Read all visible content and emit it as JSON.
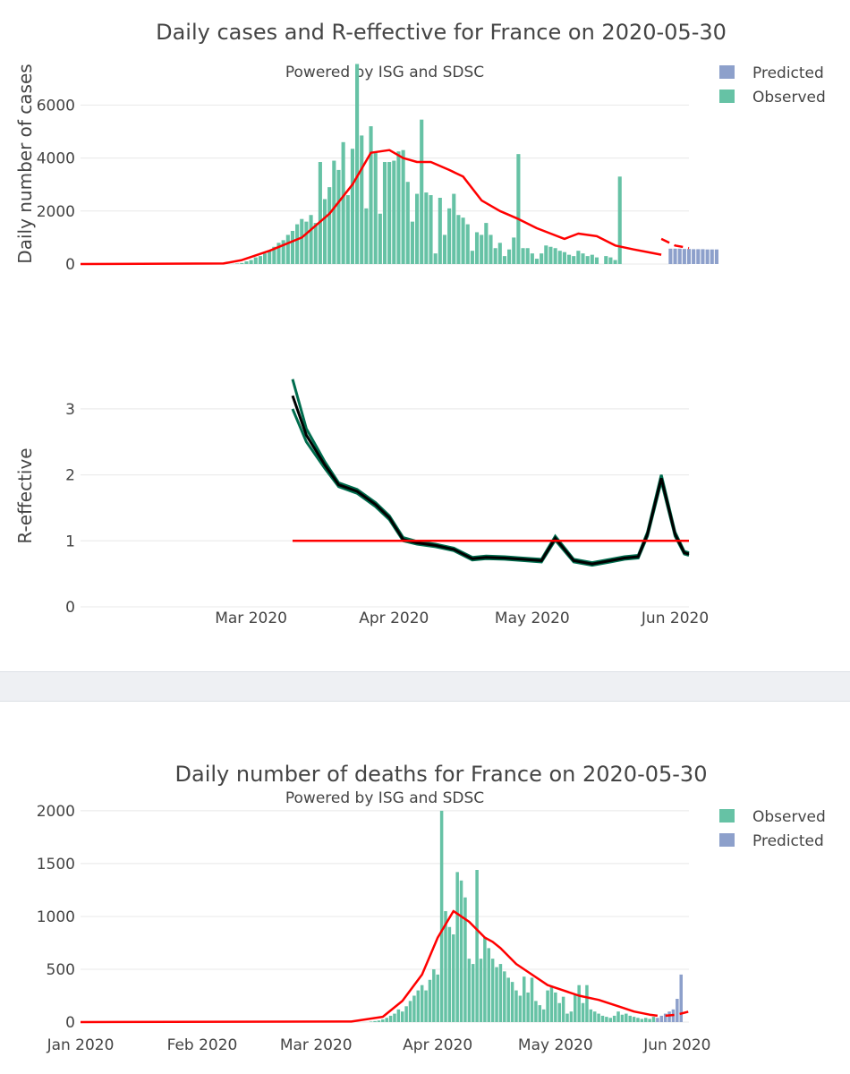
{
  "colors": {
    "observed": "#66c2a5",
    "predicted": "#8da0cb",
    "smooth": "#ff0000",
    "r_band": "#006d4e",
    "r_line": "#000000",
    "threshold": "#ff0000"
  },
  "chart_data": [
    {
      "id": "cases",
      "type": "bar",
      "title": "Daily cases and R-effective for France on 2020-05-30",
      "subtitle": "Powered by ISG and SDSC",
      "ylabel": "Daily number of cases",
      "ylim": [
        0,
        7600
      ],
      "yticks": [
        "0",
        "2000",
        "4000",
        "6000"
      ],
      "ytick_values": [
        0,
        2000,
        4000,
        6000
      ],
      "x_start": "2020-01-24",
      "x_end": "2020-06-04",
      "legend": [
        {
          "key": "predicted",
          "label": "Predicted"
        },
        {
          "key": "observed",
          "label": "Observed"
        }
      ],
      "legend_position": "top-right",
      "observed_start": "2020-02-25",
      "observed": [
        2,
        4,
        20,
        40,
        100,
        150,
        250,
        300,
        400,
        500,
        650,
        800,
        900,
        1100,
        1250,
        1500,
        1700,
        1600,
        1850,
        1550,
        3850,
        2450,
        2900,
        3900,
        3550,
        4600,
        2600,
        4350,
        7550,
        4850,
        2100,
        5200,
        4250,
        1900,
        3850,
        3850,
        3900,
        4250,
        4300,
        3100,
        1600,
        2650,
        5450,
        2700,
        2600,
        400,
        2500,
        1100,
        2100,
        2650,
        1850,
        1750,
        1500,
        500,
        1200,
        1100,
        1550,
        1100,
        600,
        800,
        300,
        550,
        1000,
        4150,
        600,
        600,
        400,
        200,
        400,
        700,
        650,
        600,
        500,
        450,
        350,
        300,
        500,
        400,
        300,
        350,
        250,
        0,
        300,
        250,
        150,
        3300
      ],
      "predicted_start": "2020-05-31",
      "predicted": [
        580,
        580,
        580,
        570,
        570,
        560,
        560,
        560,
        550,
        550,
        550
      ],
      "smooth_x": [
        "2020-01-24",
        "2020-02-24",
        "2020-02-28",
        "2020-03-05",
        "2020-03-12",
        "2020-03-18",
        "2020-03-23",
        "2020-03-27",
        "2020-03-31",
        "2020-04-03",
        "2020-04-06",
        "2020-04-09",
        "2020-04-13",
        "2020-04-16",
        "2020-04-20",
        "2020-04-24",
        "2020-04-28",
        "2020-05-02",
        "2020-05-05",
        "2020-05-08",
        "2020-05-11",
        "2020-05-15",
        "2020-05-19",
        "2020-05-23",
        "2020-05-27",
        "2020-05-29"
      ],
      "smooth_y": [
        0,
        20,
        150,
        500,
        1000,
        1900,
        3000,
        4200,
        4300,
        4000,
        3850,
        3850,
        3550,
        3300,
        2400,
        2000,
        1700,
        1350,
        1150,
        950,
        1150,
        1050,
        700,
        550,
        420,
        350
      ],
      "smooth_forecast_x": [
        "2020-05-29",
        "2020-06-01",
        "2020-06-04"
      ],
      "smooth_forecast_y": [
        950,
        700,
        600
      ]
    },
    {
      "id": "reff",
      "type": "line",
      "ylabel": "R-effective",
      "ylim": [
        0,
        3.5
      ],
      "yticks": [
        "0",
        "1",
        "2",
        "3"
      ],
      "ytick_values": [
        0,
        1,
        2,
        3
      ],
      "x_start": "2020-01-24",
      "x_end": "2020-06-04",
      "xticks": [
        "Mar 2020",
        "Apr 2020",
        "May 2020",
        "Jun 2020"
      ],
      "xtick_dates": [
        "2020-03-01",
        "2020-04-01",
        "2020-05-01",
        "2020-06-01"
      ],
      "x": [
        "2020-03-10",
        "2020-03-13",
        "2020-03-17",
        "2020-03-20",
        "2020-03-24",
        "2020-03-28",
        "2020-03-31",
        "2020-04-03",
        "2020-04-06",
        "2020-04-10",
        "2020-04-14",
        "2020-04-18",
        "2020-04-21",
        "2020-04-25",
        "2020-04-29",
        "2020-05-03",
        "2020-05-06",
        "2020-05-10",
        "2020-05-14",
        "2020-05-18",
        "2020-05-21",
        "2020-05-24",
        "2020-05-26",
        "2020-05-29",
        "2020-06-01",
        "2020-06-03",
        "2020-06-04"
      ],
      "r_mid": [
        3.2,
        2.6,
        2.15,
        1.85,
        1.75,
        1.55,
        1.35,
        1.02,
        0.97,
        0.93,
        0.87,
        0.73,
        0.75,
        0.74,
        0.72,
        0.7,
        1.04,
        0.7,
        0.65,
        0.7,
        0.74,
        0.76,
        1.1,
        1.95,
        1.1,
        0.82,
        0.8
      ],
      "r_upper": [
        3.45,
        2.7,
        2.2,
        1.88,
        1.78,
        1.58,
        1.38,
        1.05,
        0.99,
        0.95,
        0.89,
        0.75,
        0.77,
        0.76,
        0.74,
        0.72,
        1.07,
        0.72,
        0.67,
        0.72,
        0.76,
        0.78,
        1.13,
        2.0,
        1.13,
        0.84,
        0.82
      ],
      "r_lower": [
        3.0,
        2.5,
        2.1,
        1.82,
        1.72,
        1.52,
        1.32,
        1.0,
        0.95,
        0.91,
        0.85,
        0.71,
        0.73,
        0.72,
        0.7,
        0.68,
        1.01,
        0.68,
        0.63,
        0.68,
        0.72,
        0.74,
        1.07,
        1.9,
        1.07,
        0.8,
        0.78
      ],
      "threshold": 1,
      "threshold_x": [
        "2020-03-10",
        "2020-06-04"
      ]
    },
    {
      "id": "deaths",
      "type": "bar",
      "title": "Daily number of deaths for France on 2020-05-30",
      "subtitle": "Powered by ISG and SDSC",
      "ylim": [
        0,
        2050
      ],
      "yticks": [
        "0",
        "500",
        "1000",
        "1500",
        "2000"
      ],
      "ytick_values": [
        0,
        500,
        1000,
        1500,
        2000
      ],
      "x_start": "2020-01-01",
      "x_end": "2020-06-04",
      "xticks": [
        "Jan 2020",
        "Feb 2020",
        "Mar 2020",
        "Apr 2020",
        "May 2020",
        "Jun 2020"
      ],
      "xtick_dates": [
        "2020-01-01",
        "2020-02-01",
        "2020-03-01",
        "2020-04-01",
        "2020-05-01",
        "2020-06-01"
      ],
      "legend": [
        {
          "key": "observed",
          "label": "Observed"
        },
        {
          "key": "predicted",
          "label": "Predicted"
        }
      ],
      "legend_position": "top-right",
      "observed_start": "2020-03-15",
      "observed": [
        5,
        10,
        15,
        25,
        40,
        60,
        80,
        120,
        100,
        150,
        200,
        250,
        300,
        350,
        300,
        400,
        500,
        450,
        2000,
        1050,
        900,
        830,
        1420,
        1340,
        1180,
        600,
        550,
        1440,
        600,
        800,
        700,
        600,
        520,
        550,
        480,
        420,
        380,
        300,
        250,
        430,
        280,
        420,
        200,
        160,
        120,
        300,
        330,
        280,
        180,
        240,
        80,
        100,
        260,
        350,
        180,
        350,
        120,
        100,
        80,
        60,
        50,
        40,
        60,
        100,
        70,
        80,
        60,
        50,
        40,
        30,
        40,
        30,
        50
      ],
      "predicted_start": "2020-05-27",
      "predicted": [
        40,
        60,
        80,
        100,
        120,
        220,
        450
      ],
      "smooth_x": [
        "2020-01-01",
        "2020-03-10",
        "2020-03-18",
        "2020-03-23",
        "2020-03-28",
        "2020-04-01",
        "2020-04-05",
        "2020-04-09",
        "2020-04-13",
        "2020-04-15",
        "2020-04-17",
        "2020-04-21",
        "2020-04-25",
        "2020-04-29",
        "2020-05-03",
        "2020-05-07",
        "2020-05-12",
        "2020-05-17",
        "2020-05-21",
        "2020-05-25",
        "2020-05-27"
      ],
      "smooth_y": [
        0,
        5,
        50,
        200,
        450,
        800,
        1050,
        950,
        800,
        760,
        700,
        550,
        450,
        350,
        300,
        250,
        210,
        150,
        100,
        70,
        60
      ],
      "smooth_forecast_x": [
        "2020-05-29",
        "2020-06-01",
        "2020-06-04"
      ],
      "smooth_forecast_y": [
        60,
        70,
        100
      ]
    }
  ]
}
